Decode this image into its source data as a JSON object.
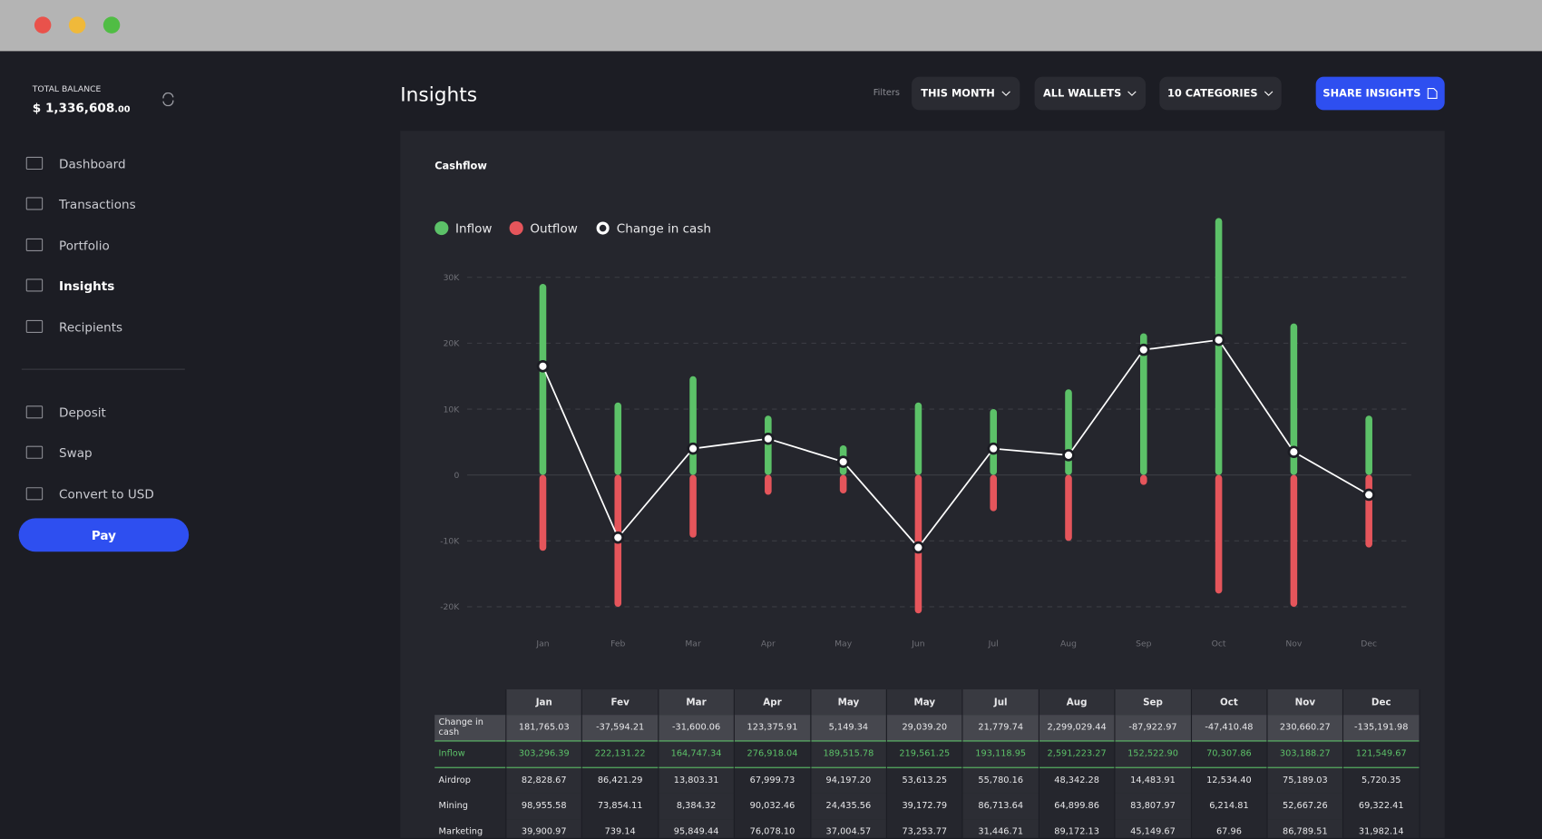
{
  "sidebar": {
    "balance_label": "TOTAL BALANCE",
    "balance_currency": "$",
    "balance_amount": "1,336,608",
    "balance_cents": ".00",
    "nav": [
      "Dashboard",
      "Transactions",
      "Portfolio",
      "Insights",
      "Recipients"
    ],
    "active_nav_index": 3,
    "actions": [
      "Deposit",
      "Swap",
      "Convert to USD"
    ],
    "pay_button": "Pay"
  },
  "header": {
    "title": "Insights",
    "filters_label": "Filters",
    "filters": [
      "THIS MONTH",
      "ALL WALLETS",
      "10 CATEGORIES"
    ],
    "share_button": "SHARE INSIGHTS"
  },
  "chart_data": {
    "type": "bar",
    "title": "Cashflow",
    "categories": [
      "Jan",
      "Feb",
      "Mar",
      "Apr",
      "May",
      "Jun",
      "Jul",
      "Aug",
      "Sep",
      "Oct",
      "Nov",
      "Dec"
    ],
    "series": [
      {
        "name": "Inflow",
        "color": "#5cc168",
        "values": [
          29000,
          11000,
          15000,
          9000,
          4500,
          11000,
          10000,
          13000,
          21500,
          39000,
          23000,
          9000
        ]
      },
      {
        "name": "Outflow",
        "color": "#e5555b",
        "values": [
          -11500,
          -20000,
          -9500,
          -3000,
          -2800,
          -21000,
          -5500,
          -10000,
          -1500,
          -18000,
          -20000,
          -11000
        ]
      },
      {
        "name": "Change in cash",
        "color": "#ffffff",
        "type": "line",
        "values": [
          16500,
          -9500,
          4000,
          5500,
          2000,
          -11000,
          4000,
          3000,
          19000,
          20500,
          3500,
          -3000
        ]
      }
    ],
    "ylim": [
      -22000,
      40000
    ],
    "yticks": [
      {
        "value": -20000,
        "label": "-20K"
      },
      {
        "value": -10000,
        "label": "-10K"
      },
      0,
      {
        "value": 10000,
        "label": "10K"
      },
      {
        "value": 20000,
        "label": "20K"
      },
      {
        "value": 30000,
        "label": "30K"
      }
    ],
    "grid": true
  },
  "table": {
    "columns": [
      "Jan",
      "Fev",
      "Mar",
      "Apr",
      "May",
      "May",
      "Jul",
      "Aug",
      "Sep",
      "Oct",
      "Nov",
      "Dec"
    ],
    "rows": [
      {
        "label": "Change in cash",
        "values": [
          "181,765.03",
          "-37,594.21",
          "-31,600.06",
          "123,375.91",
          "5,149.34",
          "29,039.20",
          "21,779.74",
          "2,299,029.44",
          "-87,922.97",
          "-47,410.48",
          "230,660.27",
          "-135,191.98"
        ]
      },
      {
        "label": "Inflow",
        "values": [
          "303,296.39",
          "222,131.22",
          "164,747.34",
          "276,918.04",
          "189,515.78",
          "219,561.25",
          "193,118.95",
          "2,591,223.27",
          "152,522.90",
          "70,307.86",
          "303,188.27",
          "121,549.67"
        ]
      },
      {
        "label": "Airdrop",
        "values": [
          "82,828.67",
          "86,421.29",
          "13,803.31",
          "67,999.73",
          "94,197.20",
          "53,613.25",
          "55,780.16",
          "48,342.28",
          "14,483.91",
          "12,534.40",
          "75,189.03",
          "5,720.35"
        ]
      },
      {
        "label": "Mining",
        "values": [
          "98,955.58",
          "73,854.11",
          "8,384.32",
          "90,032.46",
          "24,435.56",
          "39,172.79",
          "86,713.64",
          "64,899.86",
          "83,807.97",
          "6,214.81",
          "52,667.26",
          "69,322.41"
        ]
      },
      {
        "label": "Marketing",
        "values": [
          "39,900.97",
          "739.14",
          "95,849.44",
          "76,078.10",
          "37,004.57",
          "73,253.77",
          "31,446.71",
          "89,172.13",
          "45,149.67",
          "67.96",
          "86,789.51",
          "31,982.14"
        ]
      }
    ]
  }
}
